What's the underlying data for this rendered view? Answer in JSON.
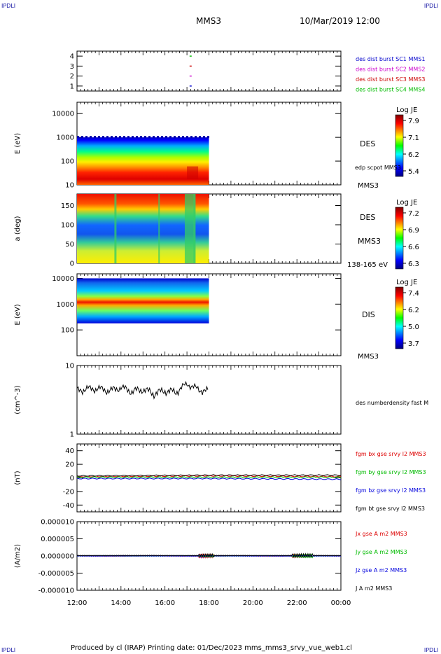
{
  "corners": {
    "tl": "IPDLI",
    "tr": "IPDLI",
    "bl": "IPDLI",
    "br": "IPDLI"
  },
  "header": {
    "spacecraft": "MMS3",
    "datetime": "10/Mar/2019 12:00"
  },
  "footer": {
    "text": "Produced by cl (IRAP)   Printing date: 01/Dec/2023   mms_mms3_srvy_vue_web1.cl"
  },
  "time_axis": {
    "ticks": [
      "12:00",
      "14:00",
      "16:00",
      "18:00",
      "20:00",
      "22:00",
      "00:00"
    ]
  },
  "chart_data": [
    {
      "type": "scatter",
      "panel": "burst_availability",
      "ylim": [
        0.5,
        4.5
      ],
      "y_ticks": [
        "1",
        "2",
        "3",
        "4"
      ],
      "legend": [
        {
          "label": "des dist burst SC1 MMS1",
          "color": "#0000cc"
        },
        {
          "label": "des dist burst SC2 MMS2",
          "color": "#cc00cc"
        },
        {
          "label": "des dist burst SC3 MMS3",
          "color": "#cc0000"
        },
        {
          "label": "des dist burst SC4 MMS4",
          "color": "#00bb00"
        }
      ],
      "points": [
        {
          "x": "17:10",
          "sc": 1
        },
        {
          "x": "17:10",
          "sc": 2
        },
        {
          "x": "17:10",
          "sc": 3
        },
        {
          "x": "17:10",
          "sc": 4
        }
      ]
    },
    {
      "type": "heatmap",
      "panel": "des_energy",
      "ylabel": "E (eV)",
      "yscale": "log",
      "ylim": [
        10,
        30000
      ],
      "y_ticks": [
        "10",
        "100",
        "1000",
        "10000"
      ],
      "x_range": [
        "12:00",
        "18:00"
      ],
      "labels": [
        "DES",
        "edp scpot MMS3",
        "MMS3"
      ],
      "colorbar": {
        "title": "Log JE",
        "ticks": [
          "7.9",
          "7.1",
          "6.2",
          "5.4"
        ]
      }
    },
    {
      "type": "heatmap",
      "panel": "des_pitch_angle",
      "ylabel": "a (deg)",
      "ylim": [
        0,
        180
      ],
      "y_ticks": [
        "0",
        "50",
        "100",
        "150"
      ],
      "x_range": [
        "12:00",
        "18:00"
      ],
      "labels": [
        "DES",
        "MMS3",
        "138-165 eV"
      ],
      "colorbar": {
        "title": "Log JE",
        "ticks": [
          "7.2",
          "6.9",
          "6.6",
          "6.3"
        ]
      }
    },
    {
      "type": "heatmap",
      "panel": "dis_energy",
      "ylabel": "E (eV)",
      "yscale": "log",
      "ylim": [
        10,
        15000
      ],
      "y_ticks": [
        "100",
        "1000",
        "10000"
      ],
      "x_range": [
        "12:00",
        "18:00"
      ],
      "labels": [
        "DIS",
        "MMS3"
      ],
      "colorbar": {
        "title": "Log JE",
        "ticks": [
          "7.4",
          "6.2",
          "5.0",
          "3.7"
        ]
      }
    },
    {
      "type": "line",
      "panel": "density",
      "ylabel": "(cm^-3)",
      "yscale": "log",
      "ylim": [
        1,
        10
      ],
      "y_ticks": [
        "1",
        "10"
      ],
      "series": [
        {
          "name": "des numberdensity fast M",
          "color": "#000000",
          "x": [
            "12:00",
            "12:30",
            "13:00",
            "13:30",
            "14:00",
            "14:30",
            "15:00",
            "15:30",
            "16:00",
            "16:30",
            "17:00",
            "17:30",
            "18:00"
          ],
          "values": [
            4.3,
            4.6,
            4.6,
            4.3,
            4.8,
            4.2,
            4.5,
            3.9,
            4.3,
            4.1,
            5.4,
            4.5,
            4.2
          ]
        }
      ]
    },
    {
      "type": "line",
      "panel": "magnetic_field",
      "ylabel": "(nT)",
      "ylim": [
        -50,
        50
      ],
      "y_ticks": [
        "-40",
        "-20",
        "0",
        "20",
        "40"
      ],
      "series": [
        {
          "name": "fgm bx gse srvy l2 MMS3",
          "color": "#dd0000",
          "x": [
            "12:00",
            "18:00",
            "00:00"
          ],
          "values": [
            2,
            3,
            2
          ]
        },
        {
          "name": "fgm by gse srvy l2 MMS3",
          "color": "#00bb00",
          "x": [
            "12:00",
            "18:00",
            "00:00"
          ],
          "values": [
            1,
            1,
            1
          ]
        },
        {
          "name": "fgm bz gse srvy l2 MMS3",
          "color": "#0000dd",
          "x": [
            "12:00",
            "18:00",
            "00:00"
          ],
          "values": [
            -1,
            -1,
            -2
          ]
        },
        {
          "name": "fgm bt gse srvy l2 MMS3",
          "color": "#000000",
          "x": [
            "12:00",
            "18:00",
            "00:00"
          ],
          "values": [
            3,
            4,
            4
          ]
        }
      ]
    },
    {
      "type": "line",
      "panel": "current_density",
      "ylabel": "(A/m2)",
      "ylim": [
        -1e-05,
        1e-05
      ],
      "y_ticks": [
        "-0.000010",
        "-0.000005",
        "0.000000",
        "0.000005",
        "0.000010"
      ],
      "series": [
        {
          "name": "Jx gse A m2 MMS3",
          "color": "#dd0000",
          "x": [
            "12:00",
            "00:00"
          ],
          "values": [
            0,
            0
          ]
        },
        {
          "name": "Jy gse A m2 MMS3",
          "color": "#00bb00",
          "x": [
            "12:00",
            "00:00"
          ],
          "values": [
            0,
            0
          ]
        },
        {
          "name": "Jz gse A m2 MMS3",
          "color": "#0000dd",
          "x": [
            "12:00",
            "00:00"
          ],
          "values": [
            0,
            0
          ]
        },
        {
          "name": "J A m2 MMS3",
          "color": "#000000",
          "x": [
            "12:00",
            "00:00"
          ],
          "values": [
            0,
            0
          ]
        }
      ]
    }
  ]
}
